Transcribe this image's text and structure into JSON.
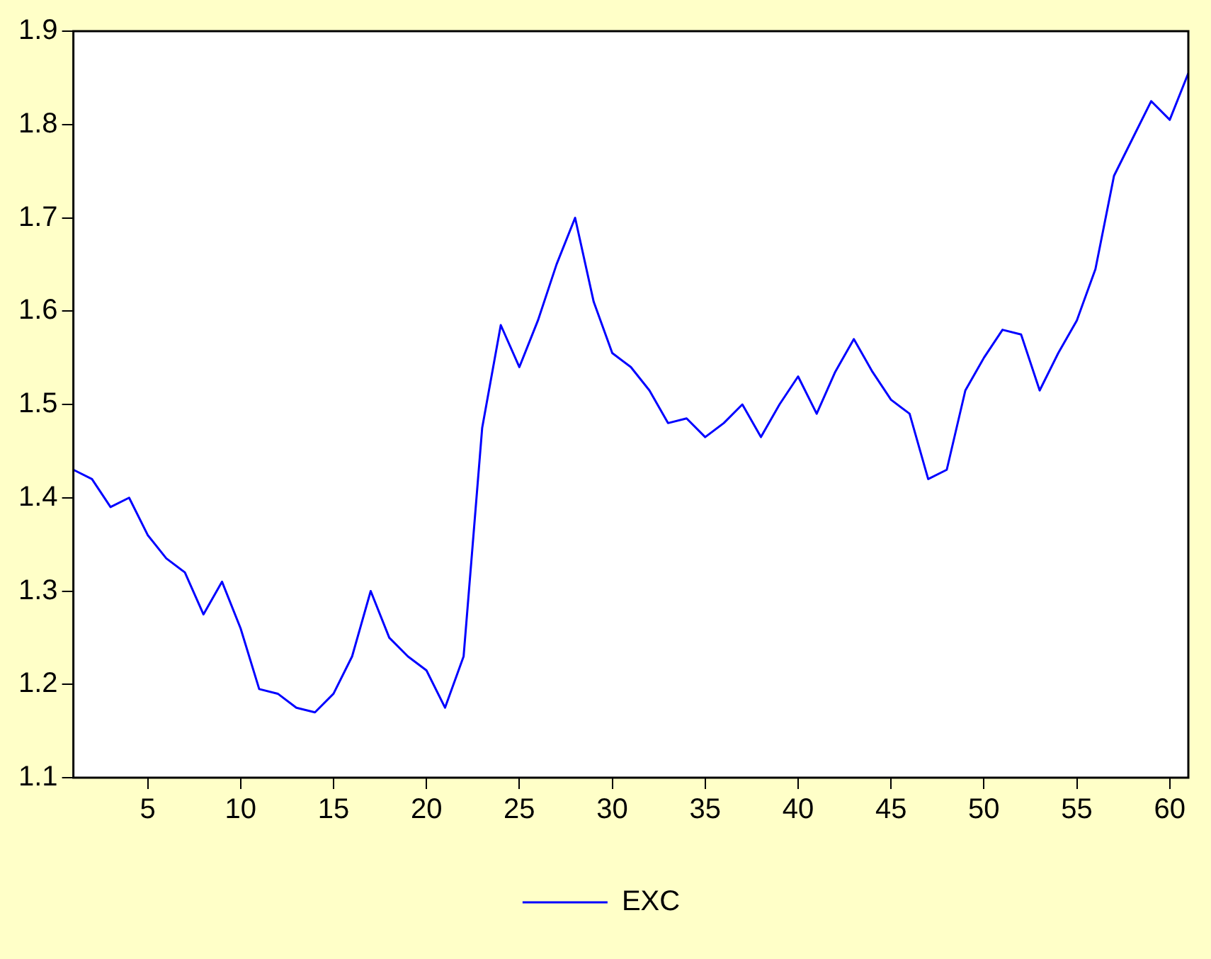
{
  "chart_data": {
    "type": "line",
    "x": [
      1,
      2,
      3,
      4,
      5,
      6,
      7,
      8,
      9,
      10,
      11,
      12,
      13,
      14,
      15,
      16,
      17,
      18,
      19,
      20,
      21,
      22,
      23,
      24,
      25,
      26,
      27,
      28,
      29,
      30,
      31,
      32,
      33,
      34,
      35,
      36,
      37,
      38,
      39,
      40,
      41,
      42,
      43,
      44,
      45,
      46,
      47,
      48,
      49,
      50,
      51,
      52,
      53,
      54,
      55,
      56,
      57,
      58,
      59,
      60,
      61
    ],
    "series": [
      {
        "name": "EXC",
        "color": "#0000ff",
        "values": [
          1.43,
          1.42,
          1.39,
          1.4,
          1.36,
          1.335,
          1.32,
          1.275,
          1.31,
          1.26,
          1.195,
          1.19,
          1.175,
          1.17,
          1.19,
          1.23,
          1.3,
          1.25,
          1.23,
          1.215,
          1.175,
          1.23,
          1.475,
          1.585,
          1.54,
          1.59,
          1.65,
          1.7,
          1.61,
          1.555,
          1.54,
          1.515,
          1.48,
          1.485,
          1.465,
          1.48,
          1.5,
          1.465,
          1.5,
          1.53,
          1.49,
          1.535,
          1.57,
          1.535,
          1.505,
          1.49,
          1.42,
          1.43,
          1.515,
          1.55,
          1.58,
          1.575,
          1.515,
          1.555,
          1.59,
          1.645,
          1.745,
          1.785,
          1.825,
          1.805,
          1.855
        ]
      }
    ],
    "xlim": [
      1,
      61
    ],
    "xticks": [
      5,
      10,
      15,
      20,
      25,
      30,
      35,
      40,
      45,
      50,
      55,
      60
    ],
    "ylim": [
      1.1,
      1.9
    ],
    "yticks": [
      1.1,
      1.2,
      1.3,
      1.4,
      1.5,
      1.6,
      1.7,
      1.8,
      1.9
    ],
    "grid": false,
    "legend": "bottom",
    "marker": "none",
    "line_style": "solid"
  }
}
